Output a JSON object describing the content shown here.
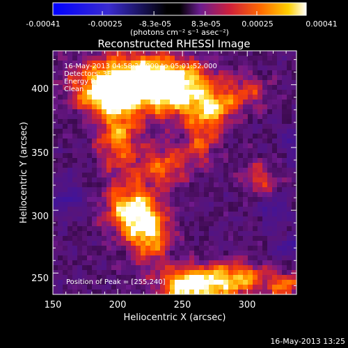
{
  "chart_data": {
    "type": "heatmap",
    "title": "Reconstructed RHESSI Image",
    "xlabel": "Heliocentric X (arcsec)",
    "ylabel": "Heliocentric Y (arcsec)",
    "xlim": [
      150,
      338
    ],
    "ylim": [
      233,
      427
    ],
    "xticks": [
      "150",
      "200",
      "250",
      "300"
    ],
    "yticks": [
      "250",
      "300",
      "350",
      "400"
    ],
    "colorbar": {
      "ticks": [
        "-0.00041",
        "-0.00025",
        "-8.3e-05",
        "8.3e-05",
        "0.00025",
        "0.00041"
      ],
      "range": [
        -0.00041,
        0.00041
      ],
      "unit_label": "(photons cm⁻² s⁻¹ asec⁻²)"
    },
    "annotations": [
      "16-May-2013 04:58:28.000 to 05:01:52.000",
      "Detectors: 3F 5F 6F 7F 8F 9F, Att 0",
      "Energy Range: 12.0 - 25.0 keV",
      "Clean     Total counts: 6.56E+03"
    ],
    "peak_label": "Position of Peak = [255,240]",
    "peak": {
      "x": 255,
      "y": 240
    },
    "sources": [
      {
        "x": 210,
        "y": 405,
        "sx": 30,
        "sy": 14,
        "a": 0.9
      },
      {
        "x": 245,
        "y": 395,
        "sx": 22,
        "sy": 16,
        "a": 0.8
      },
      {
        "x": 190,
        "y": 390,
        "sx": 16,
        "sy": 10,
        "a": 0.6
      },
      {
        "x": 275,
        "y": 380,
        "sx": 12,
        "sy": 10,
        "a": 0.55
      },
      {
        "x": 200,
        "y": 360,
        "sx": 12,
        "sy": 22,
        "a": 0.65
      },
      {
        "x": 235,
        "y": 335,
        "sx": 14,
        "sy": 12,
        "a": 0.55
      },
      {
        "x": 265,
        "y": 355,
        "sx": 10,
        "sy": 14,
        "a": 0.45
      },
      {
        "x": 210,
        "y": 300,
        "sx": 14,
        "sy": 14,
        "a": 0.85
      },
      {
        "x": 225,
        "y": 280,
        "sx": 12,
        "sy": 16,
        "a": 0.7
      },
      {
        "x": 255,
        "y": 240,
        "sx": 16,
        "sy": 10,
        "a": 1.0
      },
      {
        "x": 290,
        "y": 245,
        "sx": 18,
        "sy": 10,
        "a": 0.75
      },
      {
        "x": 330,
        "y": 240,
        "sx": 10,
        "sy": 8,
        "a": 0.55
      },
      {
        "x": 310,
        "y": 325,
        "sx": 10,
        "sy": 10,
        "a": 0.45
      },
      {
        "x": 300,
        "y": 395,
        "sx": 12,
        "sy": 10,
        "a": 0.4
      }
    ],
    "colors": {
      "negative": "#0000ff",
      "zero": "#000000",
      "low_positive": "#7a1fa0",
      "mid": "#ff3000",
      "high": "#ffd000",
      "max": "#ffffff"
    }
  },
  "footer": {
    "timestamp": "16-May-2013 13:25"
  }
}
